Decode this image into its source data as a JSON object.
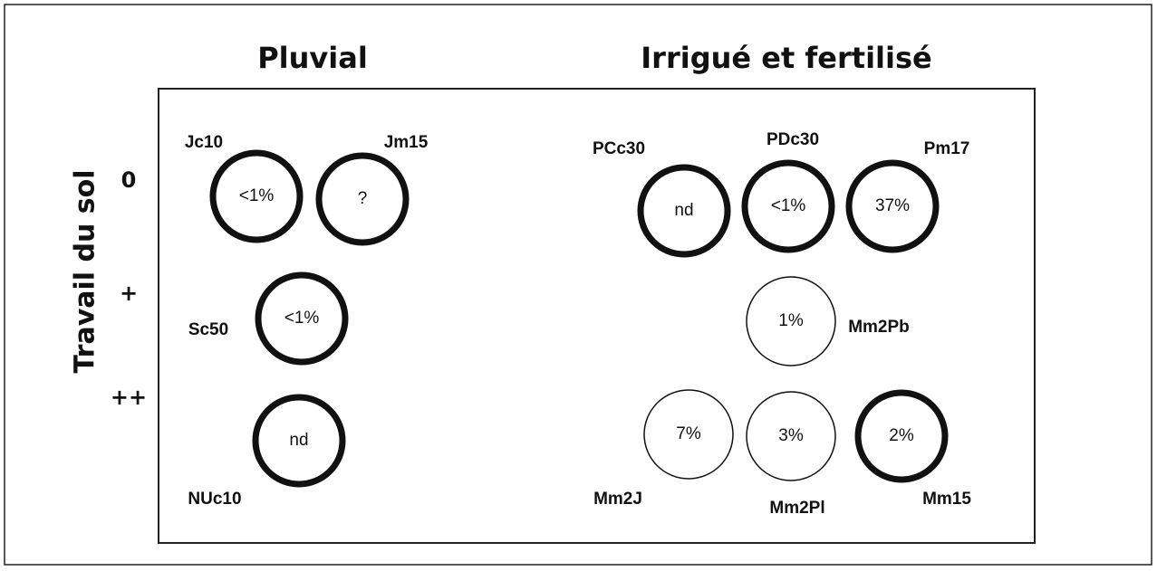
{
  "titles": [
    "Pluvial",
    "Irrigué et fertilisé"
  ],
  "y_axis_label": "Travail du sol",
  "row_labels": [
    "0",
    "+",
    "++"
  ],
  "nodes": [
    {
      "label": "Jc10",
      "value": "<1%",
      "bold_outline": true
    },
    {
      "label": "Jm15",
      "value": "?",
      "bold_outline": true
    },
    {
      "label": "Sc50",
      "value": "<1%",
      "bold_outline": true
    },
    {
      "label": "NUc10",
      "value": "nd",
      "bold_outline": true
    },
    {
      "label": "PCc30",
      "value": "nd",
      "bold_outline": true
    },
    {
      "label": "PDc30",
      "value": "<1%",
      "bold_outline": true
    },
    {
      "label": "Pm17",
      "value": "37%",
      "bold_outline": true
    },
    {
      "label": "Mm2Pb",
      "value": "1%",
      "bold_outline": false
    },
    {
      "label": "Mm2J",
      "value": "7%",
      "bold_outline": false
    },
    {
      "label": "Mm2Pl",
      "value": "3%",
      "bold_outline": false
    },
    {
      "label": "Mm15",
      "value": "2%",
      "bold_outline": true
    }
  ]
}
